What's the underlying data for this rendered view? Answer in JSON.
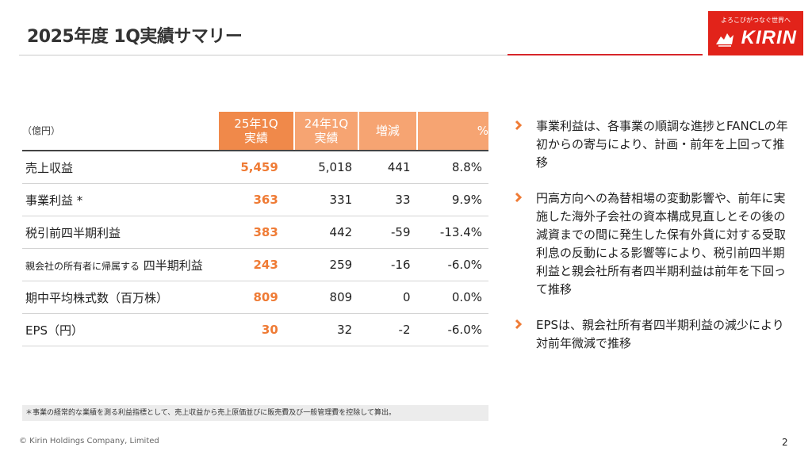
{
  "header": {
    "title": "2025年度 1Q実績サマリー",
    "logo_tagline": "よろこびがつなぐ世界へ",
    "logo_brand": "KIRIN"
  },
  "table": {
    "unit_label": "（億円）",
    "columns": [
      "25年1Q 実績",
      "24年1Q 実績",
      "増減",
      "%"
    ],
    "col_cur": [
      "25年1Q",
      "実績"
    ],
    "col_prev": [
      "24年1Q",
      "実績"
    ],
    "col_diff": "増減",
    "col_pct": "%",
    "rows": [
      {
        "label": "売上収益",
        "cur": "5,459",
        "prev": "5,018",
        "diff": "441",
        "pct": "8.8%"
      },
      {
        "label": "事業利益 *",
        "cur": "363",
        "prev": "331",
        "diff": "33",
        "pct": "9.9%"
      },
      {
        "label": "税引前四半期利益",
        "cur": "383",
        "prev": "442",
        "diff": "-59",
        "pct": "-13.4%"
      },
      {
        "label_small": "親会社の所有者に帰属する",
        "label": "四半期利益",
        "cur": "243",
        "prev": "259",
        "diff": "-16",
        "pct": "-6.0%"
      },
      {
        "label": "期中平均株式数（百万株）",
        "cur": "809",
        "prev": "809",
        "diff": "0",
        "pct": "0.0%"
      },
      {
        "label": "EPS（円）",
        "cur": "30",
        "prev": "32",
        "diff": "-2",
        "pct": "-6.0%"
      }
    ]
  },
  "bullets": [
    "事業利益は、各事業の順調な進捗とFANCLの年初からの寄与により、計画・前年を上回って推移",
    "円高方向への為替相場の変動影響や、前年に実施した海外子会社の資本構成見直しとその後の減資までの間に発生した保有外貨に対する受取利息の反動による影響等により、税引前四半期利益と親会社所有者四半期利益は前年を下回って推移",
    "EPSは、親会社所有者四半期利益の減少により対前年微減で推移"
  ],
  "footnote": "＊事業の経常的な業績を測る利益指標として、売上収益から売上原価並びに販売費及び一般管理費を控除して算出。",
  "footer": {
    "copyright": "© Kirin Holdings Company, Limited",
    "page_number": "2"
  },
  "colors": {
    "accent_orange": "#f0894a",
    "header_orange_light": "#f6a472",
    "value_orange": "#ef7b35",
    "brand_red": "#e2231a"
  },
  "icons": [
    "kirin-logo-icon",
    "chevron-right-icon"
  ]
}
